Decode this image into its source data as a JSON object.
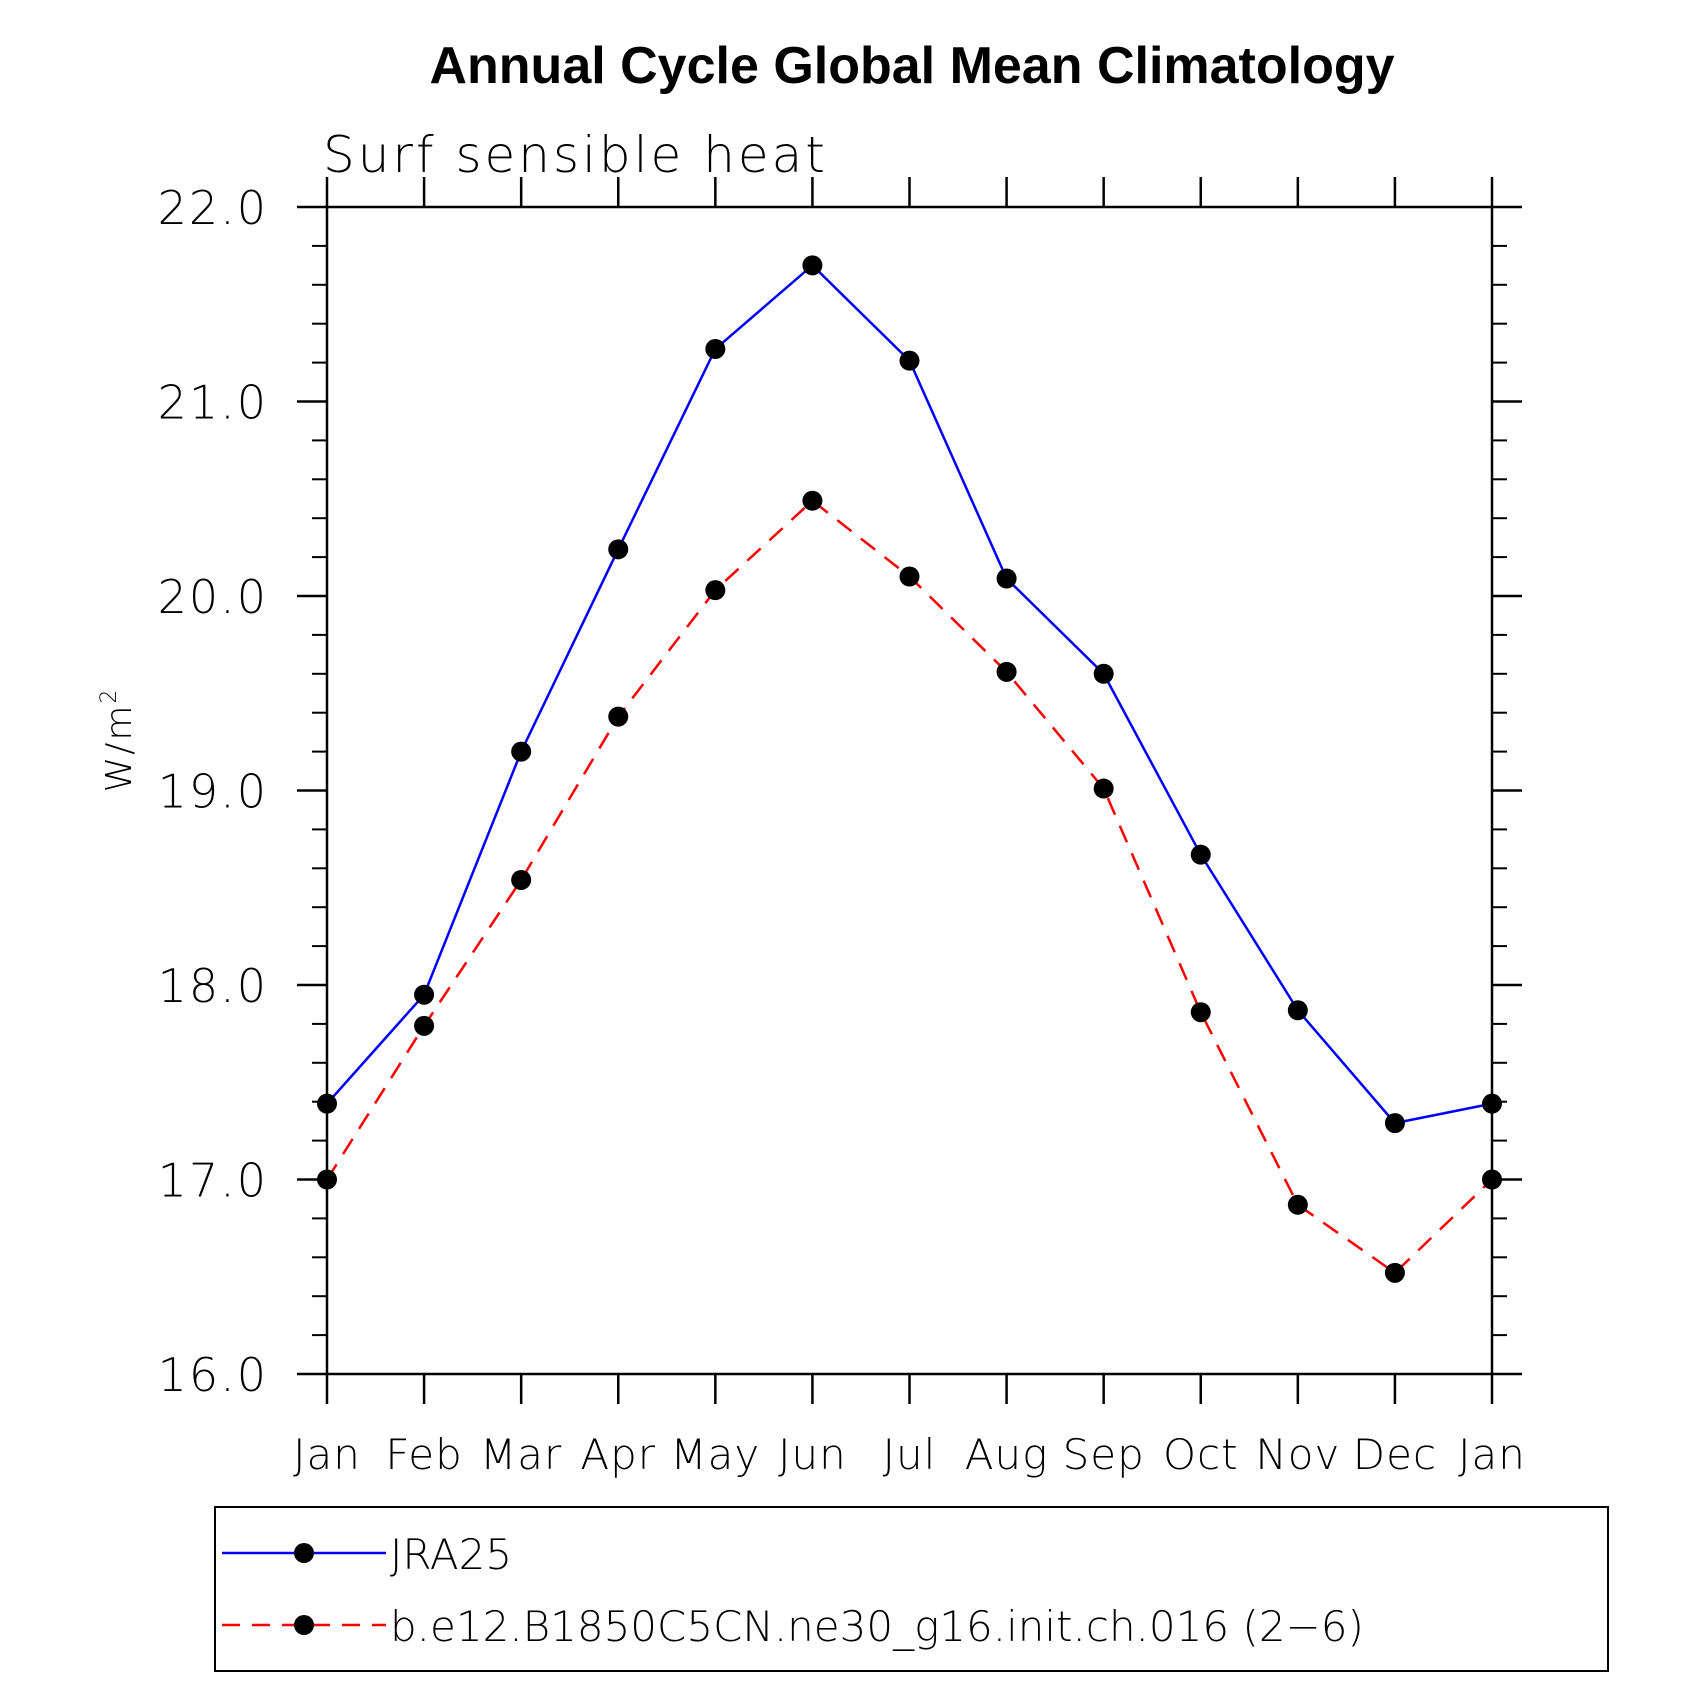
{
  "colors": {
    "background": "#ffffff",
    "axis": "#000000",
    "marker": "#000000",
    "jra25": "#0000ff",
    "model": "#ff0000"
  },
  "chart_data": {
    "type": "line",
    "title": "Annual Cycle Global Mean Climatology",
    "subtitle": "Surf sensible heat",
    "xlabel": "",
    "ylabel": "W/m",
    "ylabel_sup": "2",
    "ylim": [
      16.0,
      22.0
    ],
    "yticks": [
      "16.0",
      "17.0",
      "18.0",
      "19.0",
      "20.0",
      "21.0",
      "22.0"
    ],
    "y_minor_step": 0.2,
    "categories": [
      "Jan",
      "Feb",
      "Mar",
      "Apr",
      "May",
      "Jun",
      "Jul",
      "Aug",
      "Sep",
      "Oct",
      "Nov",
      "Dec",
      "Jan"
    ],
    "legend_position": "bottom",
    "series": [
      {
        "name": "JRA25",
        "color": "#0000ff",
        "dash": "solid",
        "values": [
          17.39,
          17.95,
          19.2,
          20.24,
          21.27,
          21.7,
          21.21,
          20.09,
          19.6,
          18.67,
          17.87,
          17.29,
          17.39
        ]
      },
      {
        "name": "b.e12.B1850C5CN.ne30_g16.init.ch.016 (2−6)",
        "color": "#ff0000",
        "dash": "dashed",
        "values": [
          17.0,
          17.79,
          18.54,
          19.38,
          20.03,
          20.49,
          20.1,
          19.61,
          19.01,
          17.86,
          16.87,
          16.52,
          17.0
        ]
      }
    ]
  }
}
